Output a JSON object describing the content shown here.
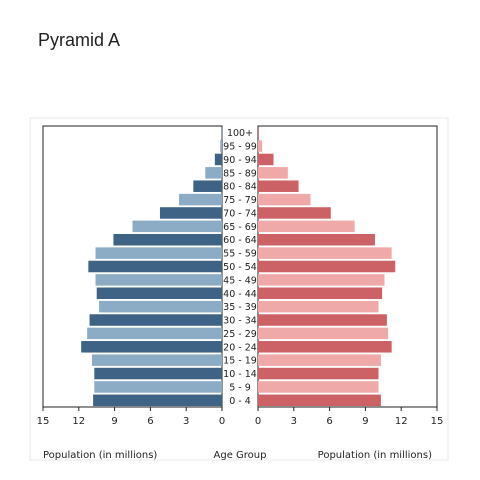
{
  "page": {
    "title": "Pyramid A"
  },
  "chart_data": {
    "type": "bar",
    "orientation": "horizontal-pyramid",
    "categories": [
      "0 - 4",
      "5 - 9",
      "10 - 14",
      "15 - 19",
      "20 - 24",
      "25 - 29",
      "30 - 34",
      "35 - 39",
      "40 - 44",
      "45 - 49",
      "50 - 54",
      "55 - 59",
      "60 - 64",
      "65 - 69",
      "70 - 74",
      "75 - 79",
      "80 - 84",
      "85 - 89",
      "90 - 94",
      "95 - 99",
      "100+"
    ],
    "series": [
      {
        "side": "left",
        "values": [
          10.8,
          10.7,
          10.7,
          10.9,
          11.8,
          11.3,
          11.1,
          10.3,
          10.5,
          10.6,
          11.2,
          10.6,
          9.1,
          7.5,
          5.2,
          3.6,
          2.4,
          1.4,
          0.6,
          0.15,
          0.03
        ],
        "color_dark": "#3e6385",
        "color_light": "#8cacc6"
      },
      {
        "side": "right",
        "values": [
          10.3,
          10.1,
          10.1,
          10.3,
          11.2,
          10.9,
          10.8,
          10.1,
          10.4,
          10.6,
          11.5,
          11.2,
          9.8,
          8.1,
          6.1,
          4.4,
          3.4,
          2.5,
          1.3,
          0.35,
          0.07
        ],
        "color_dark": "#cc6166",
        "color_light": "#f0a9a9"
      }
    ],
    "x_ticks": [
      "15",
      "12",
      "9",
      "6",
      "3",
      "0",
      "0",
      "3",
      "6",
      "9",
      "12",
      "15"
    ],
    "xlim": [
      0,
      15
    ],
    "xlabel_left": "Population (in millions)",
    "xlabel_center": "Age Group",
    "xlabel_right": "Population (in millions)",
    "alternating_shades": true
  }
}
